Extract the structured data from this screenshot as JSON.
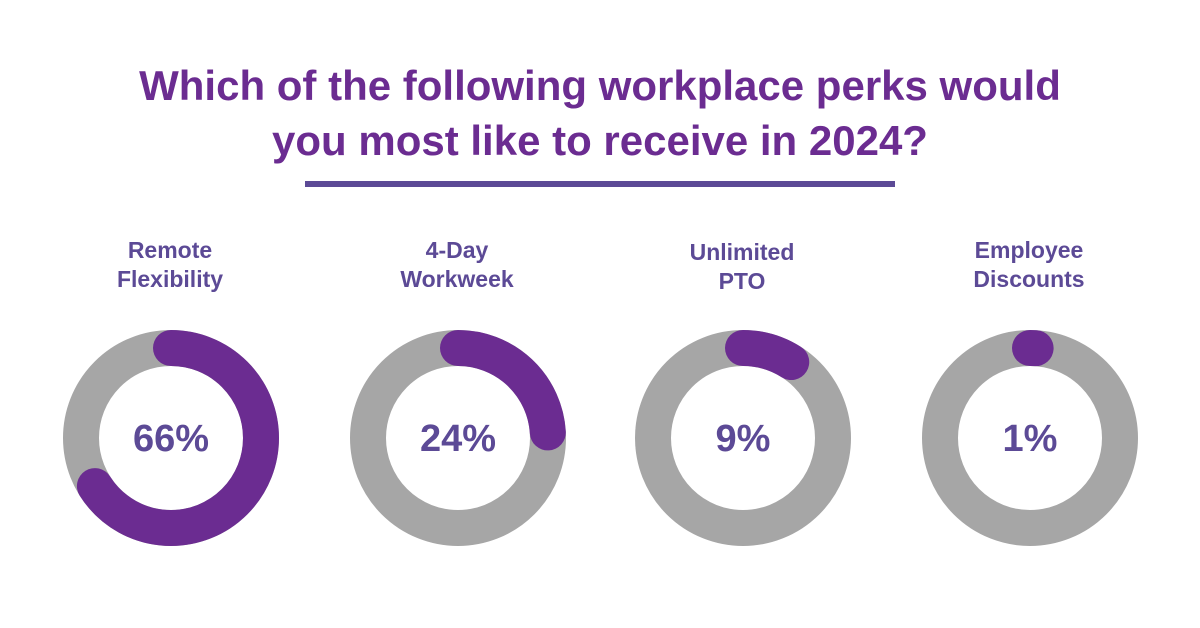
{
  "title": {
    "line1": "Which of the following workplace perks would",
    "line2": "you most like to receive in 2024?"
  },
  "colors": {
    "title": "#6b2c91",
    "label": "#5c4a96",
    "divider": "#5c4a96",
    "track": "#a6a6a6",
    "arc": "#6b2c91",
    "center_text": "#5c4a96"
  },
  "chart_data": {
    "type": "pie",
    "title": "Which of the following workplace perks would you most like to receive in 2024?",
    "categories": [
      "Remote Flexibility",
      "4-Day Workweek",
      "Unlimited PTO",
      "Employee Discounts"
    ],
    "values": [
      66,
      24,
      9,
      1
    ],
    "unit": "%",
    "items": [
      {
        "label_lines": [
          "Remote",
          "Flexibility"
        ],
        "value": 66,
        "display": "66%"
      },
      {
        "label_lines": [
          "4-Day",
          "Workweek"
        ],
        "value": 24,
        "display": "24%"
      },
      {
        "label_lines": [
          "Unlimited",
          "PTO"
        ],
        "value": 9,
        "display": "9%"
      },
      {
        "label_lines": [
          "Employee",
          "Discounts"
        ],
        "value": 1,
        "display": "1%"
      }
    ]
  }
}
